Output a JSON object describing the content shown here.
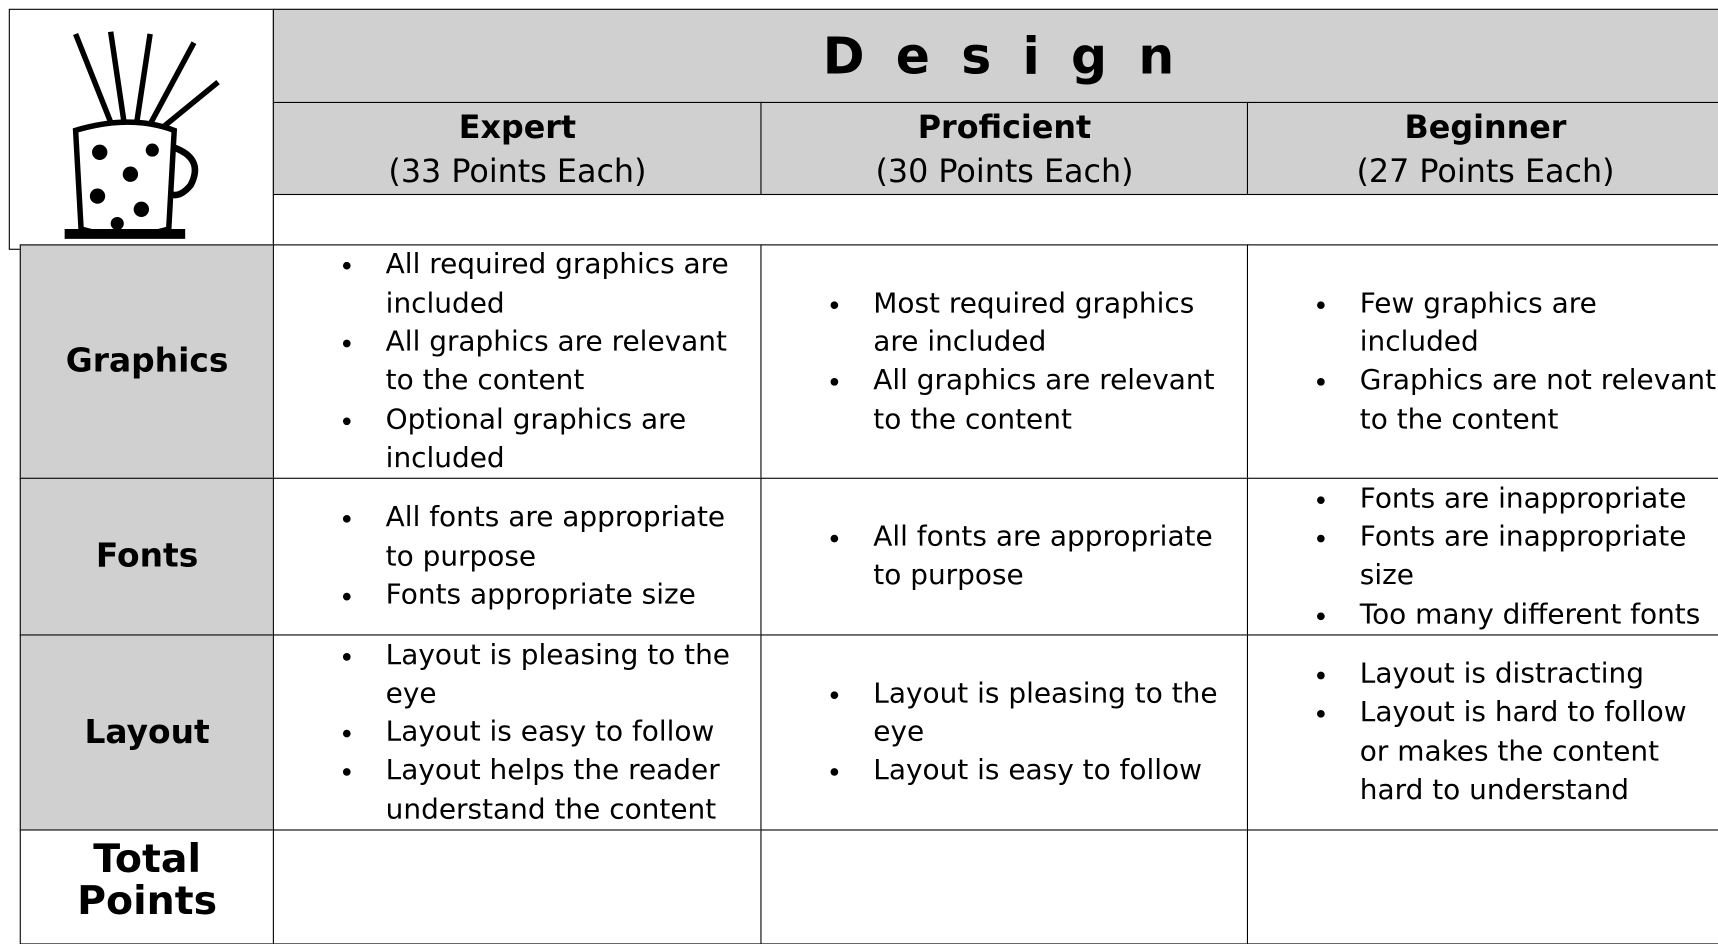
{
  "header": {
    "title": "Design"
  },
  "table": {
    "columns": [
      {
        "name": "Expert",
        "points": "(33 Points Each)"
      },
      {
        "name": "Proficient",
        "points": "(30 Points Each)"
      },
      {
        "name": "Beginner",
        "points": "(27 Points Each)"
      }
    ],
    "rows": [
      {
        "label": "Graphics",
        "cells": [
          [
            "All required graphics are included",
            "All graphics are relevant to the content",
            "Optional graphics are included"
          ],
          [
            "Most required graphics are included",
            "All graphics are relevant to the content"
          ],
          [
            "Few graphics are included",
            "Graphics are not relevant to the content"
          ]
        ]
      },
      {
        "label": "Fonts",
        "cells": [
          [
            "All fonts are appropriate to purpose",
            "Fonts appropriate size"
          ],
          [
            "All fonts are appropriate to purpose"
          ],
          [
            "Fonts are inappropriate",
            "Fonts are inappropriate size",
            "Too many different fonts"
          ]
        ]
      },
      {
        "label": "Layout",
        "cells": [
          [
            "Layout is pleasing to the eye",
            "Layout is easy to follow",
            "Layout helps the reader understand the content"
          ],
          [
            "Layout is pleasing to the eye",
            "Layout is easy to follow"
          ],
          [
            "Layout is distracting",
            "Layout is hard to follow or makes the content hard to understand"
          ]
        ]
      }
    ],
    "total_label": "Total Points"
  }
}
